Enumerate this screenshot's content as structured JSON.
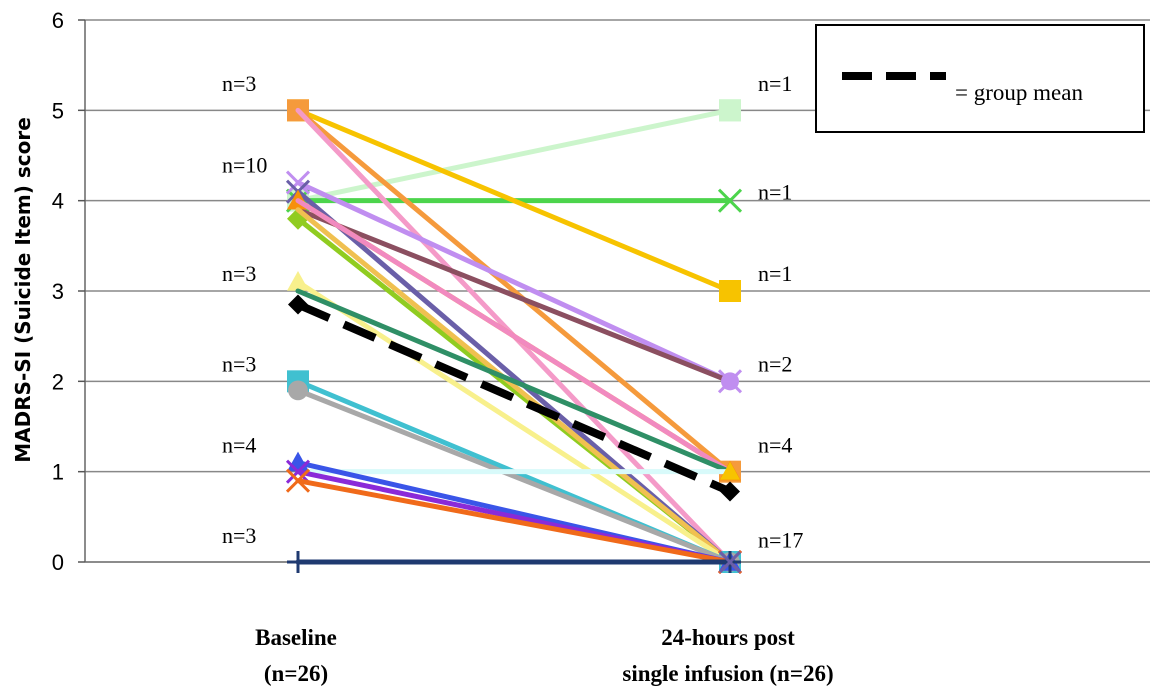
{
  "chart_data": {
    "type": "line",
    "title": "",
    "ylabel": "MADRS-SI (Suicide Item) score",
    "xlabel": "",
    "ylim": [
      0,
      6
    ],
    "yticks": [
      0,
      1,
      2,
      3,
      4,
      5,
      6
    ],
    "grid": true,
    "categories": [
      {
        "line1": "Baseline",
        "line2": "(n=26)"
      },
      {
        "line1": "24-hours post",
        "line2": "single infusion (n=26)"
      }
    ],
    "series": [
      {
        "values": [
          4.0,
          5.0
        ],
        "color": "#ccf5cc",
        "marker": "square"
      },
      {
        "values": [
          4.0,
          4.0
        ],
        "color": "#4cd44c",
        "marker": "x"
      },
      {
        "values": [
          5.0,
          3.0
        ],
        "color": "#f7c300",
        "marker": "square"
      },
      {
        "values": [
          5.0,
          1.0
        ],
        "color": "#f59a3c",
        "marker": "square"
      },
      {
        "values": [
          5.0,
          0.0
        ],
        "color": "#f49ac8",
        "marker": "none"
      },
      {
        "values": [
          4.2,
          2.0
        ],
        "color": "#c08ef0",
        "marker": "x"
      },
      {
        "values": [
          4.1,
          0.0
        ],
        "color": "#6a5fa8",
        "marker": "x"
      },
      {
        "values": [
          3.9,
          2.0
        ],
        "color": "#8b4f60",
        "marker": "none"
      },
      {
        "values": [
          4.0,
          1.0
        ],
        "color": "#f7900a",
        "marker": "triangle"
      },
      {
        "values": [
          4.0,
          1.0
        ],
        "color": "#f18ac0",
        "marker": "none"
      },
      {
        "values": [
          3.8,
          0.0
        ],
        "color": "#90cc20",
        "marker": "diamond"
      },
      {
        "values": [
          3.9,
          0.0
        ],
        "color": "#f0c050",
        "marker": "none"
      },
      {
        "values": [
          3.1,
          0.0
        ],
        "color": "#f8f08c",
        "marker": "triangle"
      },
      {
        "values": [
          3.0,
          1.0
        ],
        "color": "#2f8f66",
        "marker": "none"
      },
      {
        "values": [
          2.0,
          0.0
        ],
        "color": "#40c0d0",
        "marker": "square"
      },
      {
        "values": [
          1.9,
          0.0
        ],
        "color": "#a8a8a8",
        "marker": "circle"
      },
      {
        "values": [
          1.0,
          1.0
        ],
        "color": "#d8fafa",
        "marker": "none"
      },
      {
        "values": [
          1.1,
          0.0
        ],
        "color": "#3a55e8",
        "marker": "triangle"
      },
      {
        "values": [
          1.0,
          0.0
        ],
        "color": "#8a2ad8",
        "marker": "x"
      },
      {
        "values": [
          0.9,
          0.0
        ],
        "color": "#f06a1a",
        "marker": "x"
      },
      {
        "values": [
          0.0,
          0.0
        ],
        "color": "#1f3a70",
        "marker": "plus"
      }
    ],
    "mean_series": {
      "values": [
        2.85,
        0.78
      ],
      "color": "#000000",
      "marker": "diamond"
    },
    "n_labels_baseline": [
      {
        "text": "n=3",
        "y": 5.3
      },
      {
        "text": "n=10",
        "y": 4.4
      },
      {
        "text": "n=3",
        "y": 3.2
      },
      {
        "text": "n=3",
        "y": 2.2
      },
      {
        "text": "n=4",
        "y": 1.3
      },
      {
        "text": "n=3",
        "y": 0.3
      }
    ],
    "n_labels_post": [
      {
        "text": "n=1",
        "y": 5.3
      },
      {
        "text": "n=1",
        "y": 4.1
      },
      {
        "text": "n=1",
        "y": 3.2
      },
      {
        "text": "n=2",
        "y": 2.2
      },
      {
        "text": "n=4",
        "y": 1.3
      },
      {
        "text": "n=17",
        "y": 0.25
      }
    ],
    "legend": {
      "text": "= group mean",
      "position": "top-right"
    }
  }
}
